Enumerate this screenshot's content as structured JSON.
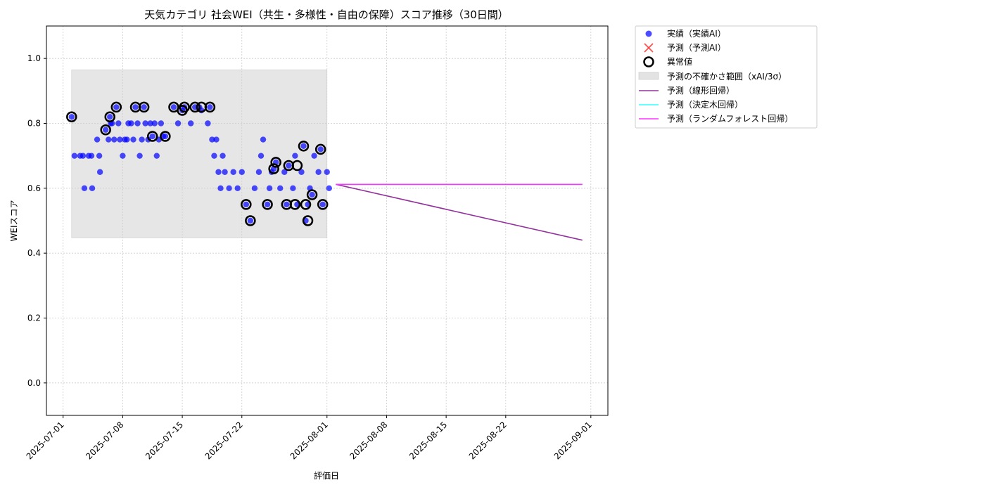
{
  "chart_data": {
    "type": "scatter",
    "title": "天気カテゴリ 社会WEI（共生・多様性・自由の保障）スコア推移（30日間）",
    "xlabel": "評価日",
    "ylabel": "WEIスコア",
    "xlim": [
      "2025-06-29T01:00",
      "2025-09-03T00:00"
    ],
    "ylim": [
      -0.1,
      1.1
    ],
    "yticks": [
      0.0,
      0.2,
      0.4,
      0.6,
      0.8,
      1.0
    ],
    "ytick_labels": [
      "0.0",
      "0.2",
      "0.4",
      "0.6",
      "0.8",
      "1.0"
    ],
    "xticks": [
      "2025-07-01",
      "2025-07-08",
      "2025-07-15",
      "2025-07-22",
      "2025-08-01",
      "2025-08-08",
      "2025-08-15",
      "2025-08-22",
      "2025-09-01"
    ],
    "grid": true,
    "legend_position": "outside-top-right",
    "colors": {
      "actual": "#0000ff",
      "predicted": "#ff3333",
      "anomaly": "#000000",
      "band": "#e3e3e3",
      "linear": "#93329e",
      "tree": "#33ffff",
      "forest": "#ff33ff"
    },
    "legend": {
      "actual": "実績（実績AI）",
      "predicted": "予測（予測AI）",
      "anomaly": "異常値",
      "band": "予測の不確かさ範囲（xAI/3σ）",
      "linear": "予測（線形回帰）",
      "tree": "予測（決定木回帰）",
      "forest": "予測（ランダムフォレスト回帰）"
    },
    "uncertainty_band": {
      "x_start": "2025-07-02T00:00",
      "x_end": "2025-08-01T00:00",
      "y_low": 0.447,
      "y_high": 0.965
    },
    "actual_points": [
      [
        "2025-07-02T00:00",
        0.82
      ],
      [
        "2025-07-02T08:00",
        0.7
      ],
      [
        "2025-07-03T00:00",
        0.7
      ],
      [
        "2025-07-03T08:00",
        0.7
      ],
      [
        "2025-07-03T12:00",
        0.6
      ],
      [
        "2025-07-04T00:00",
        0.7
      ],
      [
        "2025-07-04T08:00",
        0.7
      ],
      [
        "2025-07-04T10:00",
        0.6
      ],
      [
        "2025-07-05T00:00",
        0.75
      ],
      [
        "2025-07-05T06:00",
        0.7
      ],
      [
        "2025-07-05T08:00",
        0.65
      ],
      [
        "2025-07-06T00:00",
        0.78
      ],
      [
        "2025-07-06T08:00",
        0.75
      ],
      [
        "2025-07-06T12:00",
        0.82
      ],
      [
        "2025-07-06T14:00",
        0.8
      ],
      [
        "2025-07-06T18:00",
        0.8
      ],
      [
        "2025-07-07T00:00",
        0.75
      ],
      [
        "2025-07-07T06:00",
        0.85
      ],
      [
        "2025-07-07T12:00",
        0.8
      ],
      [
        "2025-07-07T16:00",
        0.75
      ],
      [
        "2025-07-08T00:00",
        0.7
      ],
      [
        "2025-07-08T06:00",
        0.75
      ],
      [
        "2025-07-08T12:00",
        0.75
      ],
      [
        "2025-07-08T16:00",
        0.8
      ],
      [
        "2025-07-09T00:00",
        0.8
      ],
      [
        "2025-07-09T06:00",
        0.75
      ],
      [
        "2025-07-09T12:00",
        0.85
      ],
      [
        "2025-07-09T18:00",
        0.8
      ],
      [
        "2025-07-10T00:00",
        0.7
      ],
      [
        "2025-07-10T06:00",
        0.75
      ],
      [
        "2025-07-10T12:00",
        0.85
      ],
      [
        "2025-07-10T16:00",
        0.8
      ],
      [
        "2025-07-11T00:00",
        0.75
      ],
      [
        "2025-07-11T06:00",
        0.8
      ],
      [
        "2025-07-11T12:00",
        0.76
      ],
      [
        "2025-07-11T18:00",
        0.8
      ],
      [
        "2025-07-12T00:00",
        0.7
      ],
      [
        "2025-07-12T06:00",
        0.75
      ],
      [
        "2025-07-12T12:00",
        0.8
      ],
      [
        "2025-07-12T18:00",
        0.76
      ],
      [
        "2025-07-13T00:00",
        0.76
      ],
      [
        "2025-07-14T00:00",
        0.85
      ],
      [
        "2025-07-14T12:00",
        0.8
      ],
      [
        "2025-07-15T00:00",
        0.84
      ],
      [
        "2025-07-15T06:00",
        0.85
      ],
      [
        "2025-07-16T00:00",
        0.8
      ],
      [
        "2025-07-16T12:00",
        0.85
      ],
      [
        "2025-07-17T00:00",
        0.85
      ],
      [
        "2025-07-17T06:00",
        0.84
      ],
      [
        "2025-07-18T00:00",
        0.8
      ],
      [
        "2025-07-18T06:00",
        0.85
      ],
      [
        "2025-07-18T12:00",
        0.75
      ],
      [
        "2025-07-18T18:00",
        0.7
      ],
      [
        "2025-07-19T00:00",
        0.75
      ],
      [
        "2025-07-19T06:00",
        0.65
      ],
      [
        "2025-07-19T12:00",
        0.6
      ],
      [
        "2025-07-19T18:00",
        0.7
      ],
      [
        "2025-07-20T00:00",
        0.65
      ],
      [
        "2025-07-20T12:00",
        0.6
      ],
      [
        "2025-07-21T00:00",
        0.65
      ],
      [
        "2025-07-21T12:00",
        0.6
      ],
      [
        "2025-07-22T00:00",
        0.65
      ],
      [
        "2025-07-22T12:00",
        0.55
      ],
      [
        "2025-07-23T00:00",
        0.5
      ],
      [
        "2025-07-23T12:00",
        0.6
      ],
      [
        "2025-07-24T00:00",
        0.65
      ],
      [
        "2025-07-24T06:00",
        0.7
      ],
      [
        "2025-07-24T12:00",
        0.75
      ],
      [
        "2025-07-25T00:00",
        0.55
      ],
      [
        "2025-07-25T06:00",
        0.6
      ],
      [
        "2025-07-25T12:00",
        0.65
      ],
      [
        "2025-07-25T18:00",
        0.66
      ],
      [
        "2025-07-26T00:00",
        0.68
      ],
      [
        "2025-07-26T12:00",
        0.6
      ],
      [
        "2025-07-27T00:00",
        0.65
      ],
      [
        "2025-07-27T06:00",
        0.55
      ],
      [
        "2025-07-27T12:00",
        0.67
      ],
      [
        "2025-07-28T00:00",
        0.6
      ],
      [
        "2025-07-28T06:00",
        0.7
      ],
      [
        "2025-07-28T12:00",
        0.55
      ],
      [
        "2025-07-29T00:00",
        0.65
      ],
      [
        "2025-07-29T06:00",
        0.73
      ],
      [
        "2025-07-29T12:00",
        0.5
      ],
      [
        "2025-07-29T18:00",
        0.55
      ],
      [
        "2025-07-30T00:00",
        0.6
      ],
      [
        "2025-07-30T06:00",
        0.58
      ],
      [
        "2025-07-30T12:00",
        0.7
      ],
      [
        "2025-07-31T00:00",
        0.65
      ],
      [
        "2025-07-31T06:00",
        0.72
      ],
      [
        "2025-07-31T12:00",
        0.55
      ],
      [
        "2025-08-01T00:00",
        0.65
      ],
      [
        "2025-08-01T06:00",
        0.6
      ]
    ],
    "anomaly_points": [
      [
        "2025-07-02T00:00",
        0.82
      ],
      [
        "2025-07-06T00:00",
        0.78
      ],
      [
        "2025-07-06T12:00",
        0.82
      ],
      [
        "2025-07-07T06:00",
        0.85
      ],
      [
        "2025-07-09T12:00",
        0.85
      ],
      [
        "2025-07-10T12:00",
        0.85
      ],
      [
        "2025-07-11T12:00",
        0.76
      ],
      [
        "2025-07-13T00:00",
        0.76
      ],
      [
        "2025-07-14T00:00",
        0.85
      ],
      [
        "2025-07-15T00:00",
        0.84
      ],
      [
        "2025-07-15T06:00",
        0.85
      ],
      [
        "2025-07-16T12:00",
        0.85
      ],
      [
        "2025-07-17T06:00",
        0.85
      ],
      [
        "2025-07-18T06:00",
        0.85
      ],
      [
        "2025-07-22T12:00",
        0.55
      ],
      [
        "2025-07-23T00:00",
        0.5
      ],
      [
        "2025-07-25T00:00",
        0.55
      ],
      [
        "2025-07-25T18:00",
        0.66
      ],
      [
        "2025-07-26T00:00",
        0.68
      ],
      [
        "2025-07-27T06:00",
        0.55
      ],
      [
        "2025-07-27T12:00",
        0.67
      ],
      [
        "2025-07-28T06:00",
        0.55
      ],
      [
        "2025-07-28T12:00",
        0.67
      ],
      [
        "2025-07-29T12:00",
        0.55
      ],
      [
        "2025-07-29T18:00",
        0.5
      ],
      [
        "2025-07-29T06:00",
        0.73
      ],
      [
        "2025-07-30T06:00",
        0.58
      ],
      [
        "2025-07-31T06:00",
        0.72
      ],
      [
        "2025-07-31T12:00",
        0.55
      ]
    ],
    "forecast_start": "2025-08-02T01:00",
    "forecast_end": "2025-08-31T00:00",
    "linear_forecast": {
      "start": 0.612,
      "end": 0.44
    },
    "tree_forecast": {
      "start": 0.612,
      "end": 0.612
    },
    "forest_forecast": {
      "start": 0.612,
      "end": 0.612
    }
  }
}
